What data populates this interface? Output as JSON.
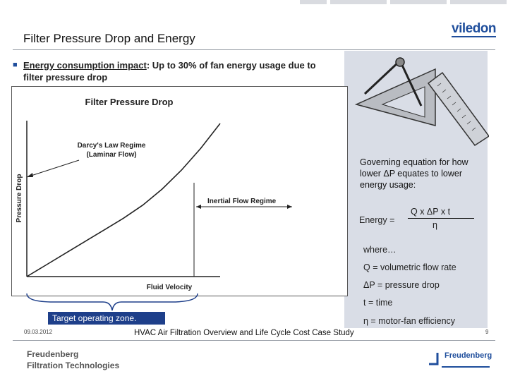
{
  "slide": {
    "title": "Filter Pressure Drop and Energy",
    "brand_logo": "viledon",
    "bullet": {
      "lead": "Energy consumption impact",
      "rest": ": Up to 30% of fan energy usage due to filter pressure drop"
    }
  },
  "chart_data": {
    "type": "line",
    "title": "Filter Pressure Drop",
    "xlabel": "Fluid Velocity",
    "ylabel": "Pressure Drop",
    "annotations": [
      "Darcy's Law Regime",
      "(Laminar Flow)",
      "Inertial Flow Regime"
    ],
    "x": [
      0,
      1,
      2,
      3,
      4,
      5,
      6,
      7,
      8,
      9,
      10
    ],
    "values": [
      0,
      0.8,
      1.6,
      2.4,
      3.2,
      4.0,
      4.9,
      6.0,
      7.3,
      8.8,
      10.5
    ],
    "grid": false
  },
  "equation": {
    "intro": "Governing equation for how lower ΔP equates to lower energy usage:",
    "lhs": "Energy  =",
    "numerator": "Q  x ΔP   x   t",
    "denominator": "η",
    "where": "where…",
    "definitions": [
      "Q = volumetric flow rate",
      "ΔP = pressure drop",
      "t = time",
      "η = motor-fan efficiency"
    ]
  },
  "callout": "Target operating zone.",
  "footer": {
    "date": "09.03.2012",
    "text": "HVAC Air Filtration Overview and Life Cycle Cost Case Study",
    "page": "9",
    "company_line1": "Freudenberg",
    "company_line2": "Filtration Technologies",
    "right_logo": "Freudenberg"
  },
  "colors": {
    "accent": "#1f4e9c",
    "callout_bg": "#1e3f8a",
    "panel_bg": "#d9dde6"
  }
}
